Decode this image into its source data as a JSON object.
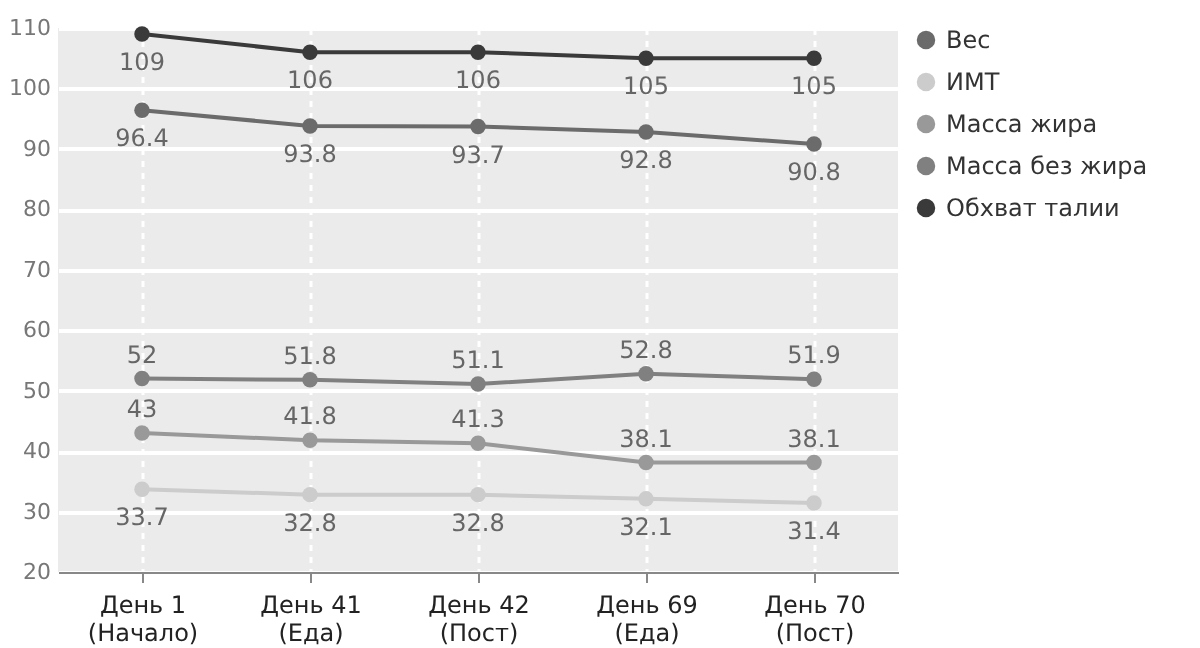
{
  "chart_data": {
    "type": "line",
    "categories": [
      "День 1\n(Начало)",
      "День 41\n(Еда)",
      "День 42\n(Пост)",
      "День 69\n(Еда)",
      "День 70\n(Пост)"
    ],
    "series": [
      {
        "name": "Вес",
        "color": "#6b6b6b",
        "values": [
          96.4,
          93.8,
          93.7,
          92.8,
          90.8
        ]
      },
      {
        "name": "ИМТ",
        "color": "#cccccc",
        "values": [
          33.7,
          32.8,
          32.8,
          32.1,
          31.4
        ]
      },
      {
        "name": "Масса жира",
        "color": "#999999",
        "values": [
          43,
          41.8,
          41.3,
          38.1,
          38.1
        ]
      },
      {
        "name": "Масса без жира",
        "color": "#808080",
        "values": [
          52,
          51.8,
          51.1,
          52.8,
          51.9
        ]
      },
      {
        "name": "Обхват талии",
        "color": "#3a3a3a",
        "values": [
          109,
          106,
          106,
          105,
          105
        ]
      }
    ],
    "ylim": [
      20,
      110
    ],
    "yticks": [
      20,
      30,
      40,
      50,
      60,
      70,
      80,
      90,
      100,
      110
    ],
    "grid": true,
    "legend": "top right",
    "marker": "circle",
    "line_style": "solid",
    "data_labels": true
  }
}
